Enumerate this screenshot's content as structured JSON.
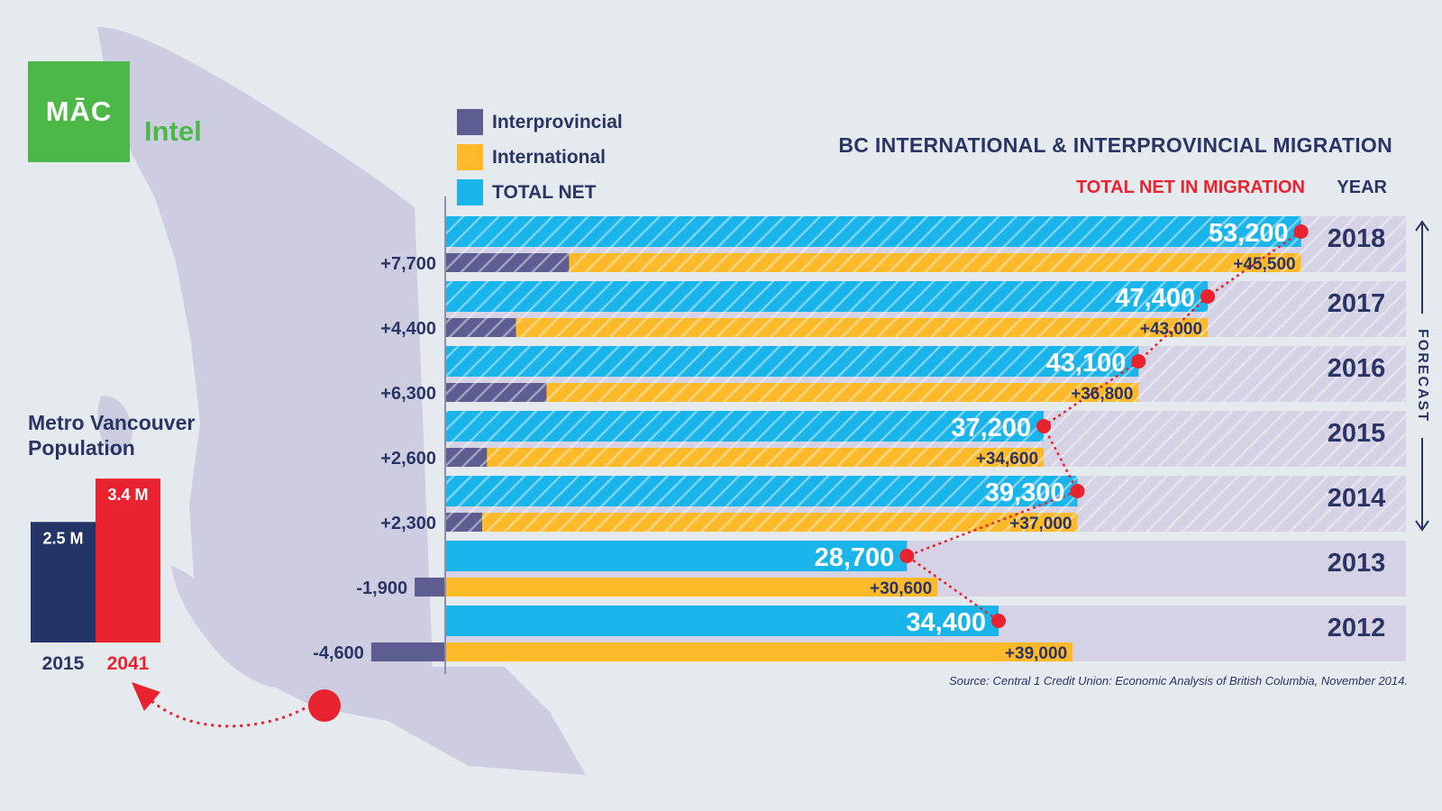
{
  "branding": {
    "logo_text": "MĀC",
    "logo_word": "Intel",
    "green": "#4cb848"
  },
  "legend": [
    {
      "label": "Interprovincial",
      "color": "#5d5d91"
    },
    {
      "label": "International",
      "color": "#ffb929"
    },
    {
      "label": "TOTAL NET",
      "color": "#19b4ea"
    }
  ],
  "header": {
    "title": "BC INTERNATIONAL & INTERPROVINCIAL MIGRATION",
    "net_column": "TOTAL NET IN MIGRATION",
    "year_column": "YEAR",
    "forecast_label": "FORECAST"
  },
  "population": {
    "title_line1": "Metro Vancouver",
    "title_line2": "Population",
    "bars": [
      {
        "year": "2015",
        "value": 2.5,
        "label": "2.5 M",
        "color": "#233567"
      },
      {
        "year": "2041",
        "value": 3.4,
        "label": "3.4 M",
        "color": "#e8222e"
      }
    ]
  },
  "source": "Source: Central 1 Credit Union: Economic Analysis of British Columbia, November 2014.",
  "colors": {
    "navy": "#2a3565",
    "red": "#e8222e",
    "cyan": "#19b4ea",
    "yellow": "#ffb929",
    "purple": "#5d5d91",
    "band": "#d4d2e4",
    "map": "#cdcde2"
  },
  "chart_data": {
    "type": "bar",
    "orientation": "horizontal",
    "title": "BC INTERNATIONAL & INTERPROVINCIAL MIGRATION",
    "categories": [
      "2018",
      "2017",
      "2016",
      "2015",
      "2014",
      "2013",
      "2012"
    ],
    "forecast_years": [
      "2014",
      "2015",
      "2016",
      "2017",
      "2018"
    ],
    "series": [
      {
        "name": "TOTAL NET",
        "values": [
          53200,
          47400,
          43100,
          37200,
          39300,
          28700,
          34400
        ],
        "labels": [
          "53,200",
          "47,400",
          "43,100",
          "37,200",
          "39,300",
          "28,700",
          "34,400"
        ]
      },
      {
        "name": "Interprovincial",
        "values": [
          7700,
          4400,
          6300,
          2600,
          2300,
          -1900,
          -4600
        ],
        "labels": [
          "+7,700",
          "+4,400",
          "+6,300",
          "+2,600",
          "+2,300",
          "-1,900",
          "-4,600"
        ]
      },
      {
        "name": "International",
        "values": [
          45500,
          43000,
          36800,
          34600,
          37000,
          30600,
          39000
        ],
        "labels": [
          "+45,500",
          "+43,000",
          "+36,800",
          "+34,600",
          "+37,000",
          "+30,600",
          "+39,000"
        ]
      }
    ],
    "xlim": [
      -4600,
      60000
    ],
    "legend_position": "top-left"
  }
}
